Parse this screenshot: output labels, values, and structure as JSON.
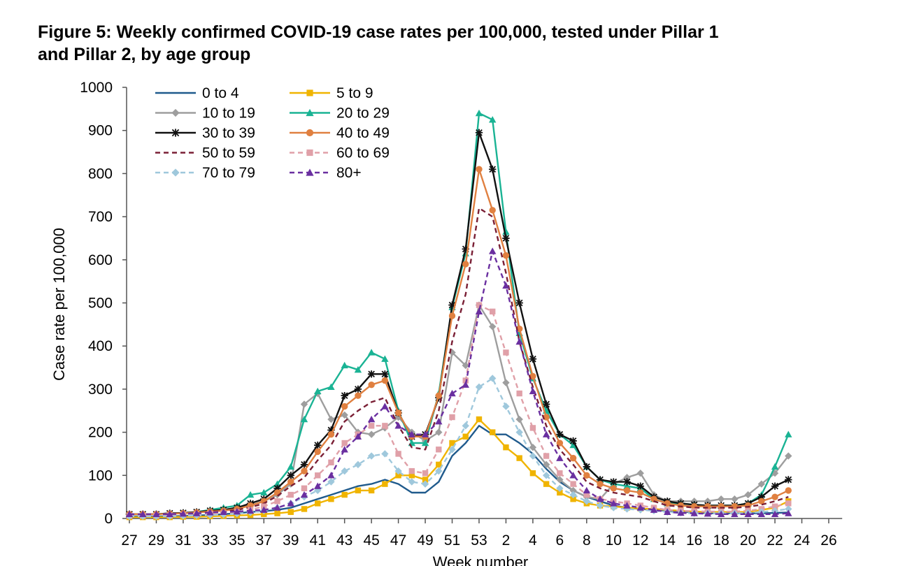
{
  "title_line1": "Figure 5: Weekly confirmed COVID-19 case rates per 100,000, tested under Pillar 1",
  "title_line2": "and Pillar 2, by age group",
  "chart_data": {
    "type": "line",
    "title": "Figure 5: Weekly confirmed COVID-19 case rates per 100,000, tested under Pillar 1 and Pillar 2, by age group",
    "xlabel": "Week number",
    "ylabel": "Case rate per 100,000",
    "ylim": [
      0,
      1000
    ],
    "yticks": [
      0,
      100,
      200,
      300,
      400,
      500,
      600,
      700,
      800,
      900,
      1000
    ],
    "x_tick_labels": [
      "27",
      "29",
      "31",
      "33",
      "35",
      "37",
      "39",
      "41",
      "43",
      "45",
      "47",
      "49",
      "51",
      "53",
      "2",
      "4",
      "6",
      "8",
      "10",
      "12",
      "14",
      "16",
      "18",
      "20",
      "22",
      "24",
      "26"
    ],
    "weeks": [
      "27",
      "28",
      "29",
      "30",
      "31",
      "32",
      "33",
      "34",
      "35",
      "36",
      "37",
      "38",
      "39",
      "40",
      "41",
      "42",
      "43",
      "44",
      "45",
      "46",
      "47",
      "48",
      "49",
      "50",
      "51",
      "52",
      "53",
      "1",
      "2",
      "3",
      "4",
      "5",
      "6",
      "7",
      "8",
      "9",
      "10",
      "11",
      "12",
      "13",
      "14",
      "15",
      "16",
      "17",
      "18",
      "19",
      "20",
      "21",
      "22",
      "23"
    ],
    "legend_position": "top-left",
    "series": [
      {
        "name": "0 to 4",
        "color": "#1f5a8c",
        "dash": "solid",
        "marker": "none",
        "values": [
          5,
          5,
          5,
          5,
          6,
          7,
          8,
          10,
          12,
          15,
          17,
          20,
          25,
          35,
          45,
          55,
          65,
          75,
          80,
          90,
          80,
          60,
          60,
          85,
          145,
          175,
          215,
          195,
          195,
          175,
          150,
          115,
          85,
          65,
          50,
          40,
          30,
          25,
          22,
          20,
          18,
          15,
          15,
          12,
          12,
          12,
          12,
          12,
          13,
          14
        ]
      },
      {
        "name": "5 to 9",
        "color": "#f0b400",
        "dash": "solid",
        "marker": "square",
        "values": [
          3,
          3,
          3,
          3,
          4,
          4,
          5,
          6,
          7,
          8,
          10,
          12,
          15,
          22,
          35,
          45,
          55,
          65,
          65,
          80,
          100,
          100,
          90,
          125,
          175,
          190,
          230,
          200,
          165,
          140,
          105,
          80,
          60,
          45,
          35,
          30,
          28,
          25,
          23,
          22,
          20,
          18,
          16,
          15,
          15,
          15,
          15,
          20,
          25,
          40
        ]
      },
      {
        "name": "10 to 19",
        "color": "#9e9e9e",
        "dash": "solid",
        "marker": "diamond",
        "values": [
          10,
          10,
          10,
          12,
          12,
          15,
          18,
          20,
          25,
          30,
          40,
          55,
          80,
          265,
          290,
          230,
          240,
          200,
          195,
          210,
          235,
          200,
          180,
          200,
          385,
          355,
          495,
          445,
          315,
          230,
          165,
          125,
          90,
          65,
          50,
          45,
          80,
          95,
          105,
          55,
          40,
          40,
          40,
          40,
          45,
          45,
          55,
          80,
          105,
          145
        ]
      },
      {
        "name": "20 to 29",
        "color": "#1ab394",
        "dash": "solid",
        "marker": "triangle",
        "values": [
          10,
          10,
          10,
          12,
          12,
          15,
          20,
          25,
          30,
          55,
          60,
          80,
          120,
          230,
          295,
          305,
          355,
          345,
          385,
          370,
          250,
          175,
          175,
          290,
          490,
          615,
          940,
          925,
          665,
          430,
          325,
          250,
          195,
          170,
          120,
          90,
          80,
          75,
          70,
          45,
          35,
          35,
          32,
          30,
          30,
          30,
          35,
          55,
          120,
          195
        ]
      },
      {
        "name": "30 to 39",
        "color": "#111111",
        "dash": "solid",
        "marker": "star",
        "values": [
          10,
          10,
          10,
          12,
          13,
          15,
          18,
          20,
          25,
          35,
          45,
          70,
          100,
          125,
          170,
          205,
          285,
          300,
          335,
          335,
          245,
          190,
          195,
          280,
          495,
          625,
          895,
          810,
          650,
          500,
          370,
          265,
          195,
          180,
          120,
          90,
          85,
          85,
          75,
          50,
          40,
          35,
          32,
          30,
          30,
          30,
          35,
          50,
          75,
          90
        ]
      },
      {
        "name": "40 to 49",
        "color": "#e08040",
        "dash": "solid",
        "marker": "circle",
        "values": [
          10,
          10,
          10,
          11,
          12,
          14,
          16,
          18,
          22,
          30,
          40,
          60,
          85,
          110,
          155,
          195,
          260,
          285,
          310,
          320,
          245,
          190,
          190,
          285,
          470,
          590,
          810,
          715,
          610,
          440,
          330,
          235,
          175,
          140,
          100,
          80,
          70,
          65,
          60,
          45,
          35,
          30,
          28,
          28,
          28,
          28,
          30,
          40,
          50,
          65
        ]
      },
      {
        "name": "50 to 59",
        "color": "#7a1f35",
        "dash": "dashed",
        "marker": "none",
        "values": [
          8,
          8,
          8,
          9,
          10,
          12,
          14,
          16,
          20,
          26,
          35,
          52,
          75,
          95,
          135,
          170,
          225,
          250,
          270,
          280,
          215,
          165,
          160,
          250,
          410,
          520,
          720,
          700,
          570,
          410,
          305,
          215,
          160,
          125,
          85,
          70,
          60,
          55,
          50,
          40,
          30,
          28,
          25,
          25,
          25,
          25,
          27,
          32,
          40,
          50
        ]
      },
      {
        "name": "60 to 69",
        "color": "#e0a0a8",
        "dash": "dashed",
        "marker": "square",
        "values": [
          6,
          6,
          6,
          7,
          8,
          9,
          11,
          12,
          15,
          20,
          28,
          40,
          55,
          70,
          100,
          130,
          175,
          195,
          215,
          215,
          150,
          110,
          105,
          160,
          235,
          320,
          495,
          480,
          385,
          290,
          210,
          145,
          105,
          80,
          55,
          45,
          40,
          35,
          30,
          25,
          20,
          18,
          17,
          16,
          16,
          16,
          18,
          22,
          28,
          35
        ]
      },
      {
        "name": "70 to 79",
        "color": "#9fc8dc",
        "dash": "dashed",
        "marker": "diamond",
        "values": [
          5,
          5,
          5,
          5,
          6,
          7,
          8,
          9,
          11,
          14,
          18,
          25,
          35,
          50,
          65,
          85,
          110,
          125,
          145,
          150,
          110,
          85,
          80,
          110,
          160,
          215,
          305,
          325,
          260,
          200,
          145,
          100,
          70,
          55,
          40,
          30,
          25,
          22,
          20,
          18,
          15,
          13,
          12,
          12,
          12,
          12,
          13,
          15,
          18,
          22
        ]
      },
      {
        "name": "80+",
        "color": "#6a2fa0",
        "dash": "dashed",
        "marker": "triangle",
        "values": [
          10,
          10,
          10,
          10,
          11,
          12,
          14,
          15,
          16,
          18,
          20,
          25,
          35,
          55,
          75,
          100,
          160,
          190,
          230,
          260,
          215,
          195,
          195,
          225,
          290,
          310,
          480,
          620,
          540,
          410,
          295,
          195,
          140,
          100,
          65,
          45,
          35,
          30,
          25,
          20,
          15,
          13,
          12,
          11,
          10,
          10,
          10,
          10,
          10,
          12
        ]
      }
    ]
  }
}
